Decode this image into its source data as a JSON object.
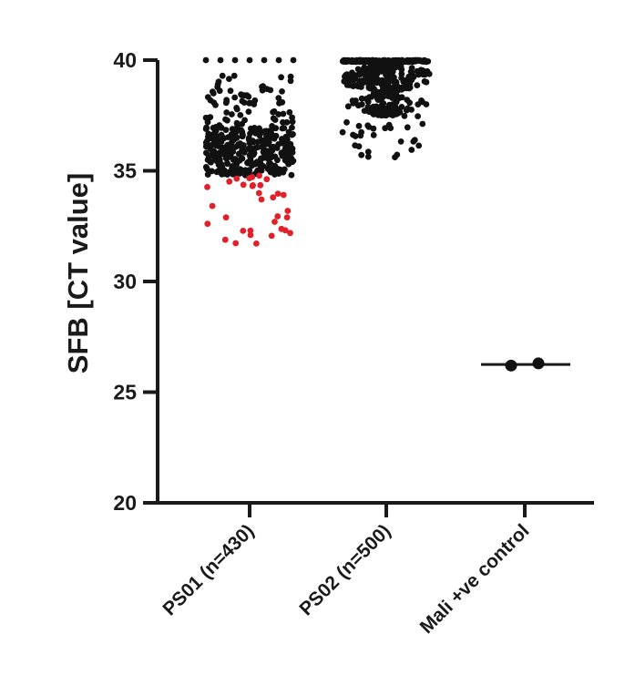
{
  "chart_data": {
    "type": "scatter",
    "subtype": "column-scatter",
    "title": "",
    "xlabel": "",
    "ylabel": "SFB [CT value]",
    "ylim": [
      20,
      40
    ],
    "yticks": [
      20,
      25,
      30,
      35,
      40
    ],
    "grid": false,
    "legend": "none",
    "categories": [
      "PS01 (n=430)",
      "PS02 (n=500)",
      "Mali +ve control"
    ],
    "colors": {
      "default": "#111111",
      "highlight": "#e0202a"
    },
    "highlight_rule": "PS01 points with CT value below 34.8 are shown in red",
    "series": [
      {
        "category": "PS01 (n=430)",
        "n": 430,
        "distribution": [
          {
            "range": [
              40.0,
              40.0
            ],
            "count": 7,
            "layout": "row"
          },
          {
            "range": [
              37.0,
              39.4
            ],
            "count": 70
          },
          {
            "range": [
              34.8,
              37.0
            ],
            "count": 320
          },
          {
            "range": [
              34.3,
              34.8
            ],
            "count": 10,
            "color": "highlight"
          },
          {
            "range": [
              31.7,
              34.3
            ],
            "count": 23,
            "color": "highlight"
          }
        ]
      },
      {
        "category": "PS02 (n=500)",
        "n": 500,
        "distribution": [
          {
            "range": [
              40.0,
              40.0
            ],
            "count": 150,
            "layout": "band"
          },
          {
            "range": [
              38.5,
              39.9
            ],
            "count": 210
          },
          {
            "range": [
              37.5,
              38.5
            ],
            "count": 110
          },
          {
            "range": [
              35.6,
              37.5
            ],
            "count": 30
          }
        ]
      },
      {
        "category": "Mali +ve control",
        "values": [
          26.2,
          26.3
        ],
        "mean": 26.25
      }
    ]
  }
}
